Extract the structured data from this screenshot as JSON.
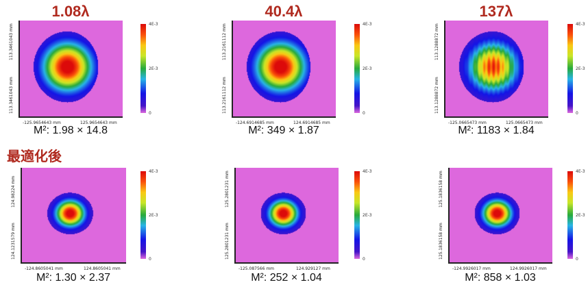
{
  "section_label": "最適化後",
  "colorbar_ticks": [
    "4E-3",
    "2E-3",
    "0"
  ],
  "chart_data": [
    {
      "type": "heatmap",
      "title": "1.08λ",
      "m2": "M²: 1.98 × 14.8",
      "x_ticks": [
        "-125.9654643 mm",
        "125.9654643 mm"
      ],
      "y_ticks": [
        "113.3461043 mm",
        "113.3461043 mm"
      ],
      "peak": 0.004,
      "zlim": [
        0,
        0.004
      ]
    },
    {
      "type": "heatmap",
      "title": "40.4λ",
      "m2": "M²: 349 × 1.87",
      "x_ticks": [
        "-124.6914685 mm",
        "124.6914685 mm"
      ],
      "y_ticks": [
        "113.2161112 mm",
        "113.2161112 mm"
      ],
      "peak": 0.004,
      "zlim": [
        0,
        0.004
      ]
    },
    {
      "type": "heatmap",
      "title": "137λ",
      "m2": "M²: 1183 × 1.84",
      "x_ticks": [
        "-125.0665473 mm",
        "125.0665473 mm"
      ],
      "y_ticks": [
        "113.1288872 mm",
        "113.1288872 mm"
      ],
      "peak": 0.0037,
      "zlim": [
        0,
        0.004
      ]
    },
    {
      "type": "heatmap",
      "title": "",
      "m2": "M²: 1.30 × 2.37",
      "x_ticks": [
        "-124.8605041 mm",
        "124.8605041 mm"
      ],
      "y_ticks": [
        "124.98224 mm",
        "124.1231579 mm"
      ],
      "peak": 0.004,
      "zlim": [
        0,
        0.004
      ]
    },
    {
      "type": "heatmap",
      "title": "",
      "m2": "M²: 252 × 1.04",
      "x_ticks": [
        "-125.087566 mm",
        "124.929127 mm"
      ],
      "y_ticks": [
        "125.2801231 mm",
        "125.2801231 mm"
      ],
      "peak": 0.004,
      "zlim": [
        0,
        0.004
      ]
    },
    {
      "type": "heatmap",
      "title": "",
      "m2": "M²: 858 × 1.03",
      "x_ticks": [
        "-124.9926017 mm",
        "124.9926017 mm"
      ],
      "y_ticks": [
        "125.1836158 mm",
        "125.1836158 mm"
      ],
      "peak": 0.004,
      "zlim": [
        0,
        0.004
      ]
    }
  ]
}
